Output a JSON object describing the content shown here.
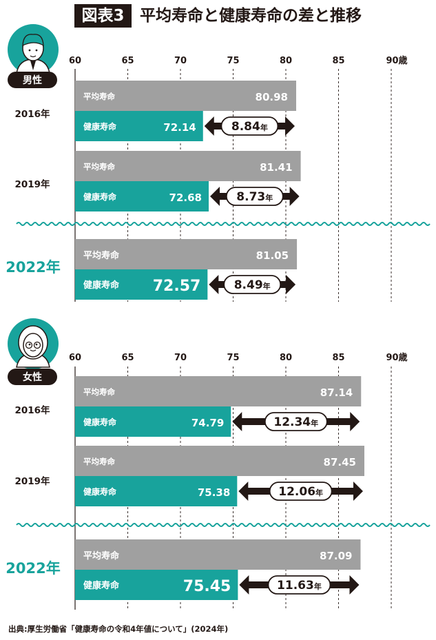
{
  "header": {
    "label": "図表3",
    "title": "平均寿命と健康寿命の差と推移"
  },
  "source": "出典:厚生労働省「健康寿命の令和4年値について」(2024年)",
  "colors": {
    "average": "#a0a0a0",
    "healthy": "#18a39c",
    "dark": "#231815",
    "wave": "#18a39c"
  },
  "chart_data": [
    {
      "type": "bar",
      "group": "男性",
      "icon": "male-avatar-icon",
      "x_ticks": [
        "60",
        "65",
        "70",
        "75",
        "80",
        "85",
        "90歳"
      ],
      "xlim": [
        60,
        90
      ],
      "series_labels": {
        "average": "平均寿命",
        "healthy": "健康寿命",
        "gap_unit": "年"
      },
      "years": [
        {
          "year": "2016年",
          "average": 80.98,
          "healthy": 72.14,
          "gap": 8.84,
          "average_label": "80.98",
          "healthy_label": "72.14",
          "gap_label": "8.84"
        },
        {
          "year": "2019年",
          "average": 81.41,
          "healthy": 72.68,
          "gap": 8.73,
          "average_label": "81.41",
          "healthy_label": "72.68",
          "gap_label": "8.73"
        },
        {
          "year": "2022年",
          "average": 81.05,
          "healthy": 72.57,
          "gap": 8.49,
          "average_label": "81.05",
          "healthy_label": "72.57",
          "gap_label": "8.49",
          "highlight": true
        }
      ]
    },
    {
      "type": "bar",
      "group": "女性",
      "icon": "female-avatar-icon",
      "x_ticks": [
        "60",
        "65",
        "70",
        "75",
        "80",
        "85",
        "90歳"
      ],
      "xlim": [
        60,
        90
      ],
      "series_labels": {
        "average": "平均寿命",
        "healthy": "健康寿命",
        "gap_unit": "年"
      },
      "years": [
        {
          "year": "2016年",
          "average": 87.14,
          "healthy": 74.79,
          "gap": 12.34,
          "average_label": "87.14",
          "healthy_label": "74.79",
          "gap_label": "12.34"
        },
        {
          "year": "2019年",
          "average": 87.45,
          "healthy": 75.38,
          "gap": 12.06,
          "average_label": "87.45",
          "healthy_label": "75.38",
          "gap_label": "12.06"
        },
        {
          "year": "2022年",
          "average": 87.09,
          "healthy": 75.45,
          "gap": 11.63,
          "average_label": "87.09",
          "healthy_label": "75.45",
          "gap_label": "11.63",
          "highlight": true
        }
      ]
    }
  ]
}
